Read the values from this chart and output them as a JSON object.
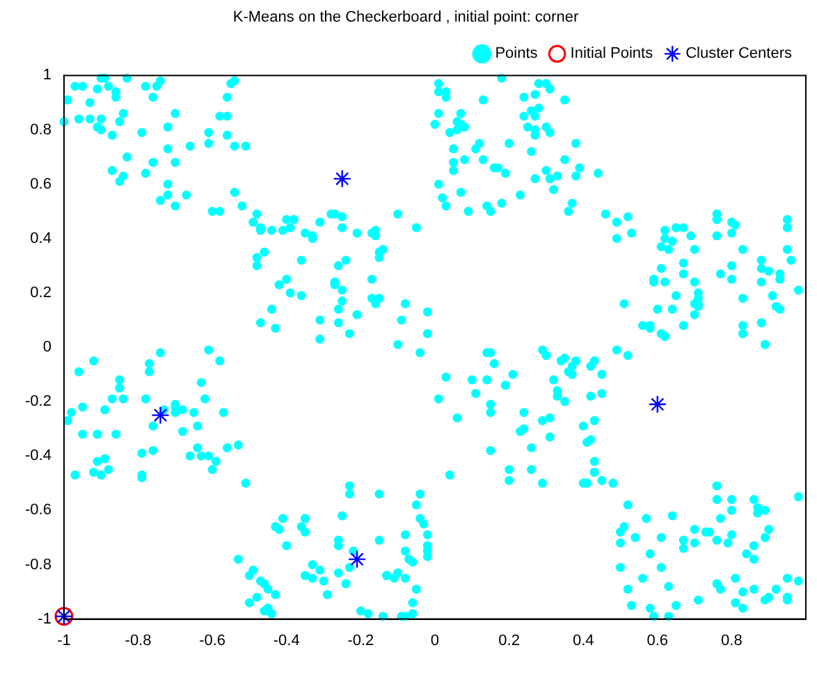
{
  "chart_data": {
    "type": "scatter",
    "title": "K-Means on the Checkerboard , initial point: corner",
    "xlim": [
      -1,
      1
    ],
    "xticks": [
      -1,
      -0.8,
      -0.6,
      -0.4,
      -0.2,
      0,
      0.2,
      0.4,
      0.6,
      0.8
    ],
    "ylim": [
      -1,
      1
    ],
    "yticks": [
      -1,
      -0.8,
      -0.6,
      -0.4,
      -0.2,
      0,
      0.2,
      0.4,
      0.6,
      0.8,
      1
    ],
    "grid": false,
    "legend": "top right",
    "series": [
      {
        "name": "Points",
        "color": "#00ffff",
        "marker": "circle",
        "x": [
          -0.97,
          -0.95,
          -0.99,
          -0.93,
          -0.91,
          -0.9,
          -0.89,
          -0.88,
          -0.86,
          -0.86,
          -0.83,
          -0.78,
          -0.75,
          -0.74,
          -0.76,
          -1.0,
          -0.96,
          -0.93,
          -0.9,
          -0.91,
          -0.9,
          -0.87,
          -0.85,
          -0.84,
          -0.79,
          -0.7,
          -0.72,
          -0.72,
          -0.83,
          -0.87,
          -0.84,
          -0.85,
          -0.78,
          -0.76,
          -0.7,
          -0.72,
          -0.74,
          -0.72,
          -0.7,
          -0.67,
          -0.66,
          -0.61,
          -0.61,
          -0.56,
          -0.58,
          -0.56,
          -0.54,
          -0.51,
          -0.56,
          -0.55,
          -0.54,
          -0.54,
          -0.6,
          -0.58,
          -0.52,
          -0.48,
          -0.49,
          -0.47,
          -0.47,
          -0.44,
          -0.41,
          -0.4,
          -0.38,
          -0.39,
          -0.35,
          -0.33,
          -0.33,
          -0.31,
          -0.28,
          -0.27,
          -0.25,
          -0.25,
          -0.21,
          -0.17,
          -0.16,
          -0.16,
          -0.14,
          -0.15,
          -0.15,
          -0.1,
          -0.05,
          -0.48,
          -0.46,
          -0.48,
          -0.36,
          -0.42,
          -0.4,
          -0.39,
          -0.36,
          -0.27,
          -0.27,
          -0.25,
          -0.26,
          -0.24,
          -0.17,
          -0.17,
          -0.15,
          -0.16,
          -0.26,
          -0.25,
          -0.21,
          -0.31,
          -0.26,
          -0.23,
          -0.31,
          -0.44,
          -0.47,
          -0.43,
          -0.1,
          -0.08,
          -0.09,
          -0.02,
          -0.02,
          0.01,
          0.01,
          0.03,
          0.03,
          0.0,
          0.01,
          0.06,
          0.07,
          0.07,
          0.08,
          0.06,
          0.04,
          0.13,
          0.18,
          0.05,
          0.05,
          0.05,
          0.08,
          0.11,
          0.12,
          0.13,
          0.16,
          0.17,
          0.19,
          0.2,
          0.01,
          0.02,
          0.03,
          0.07,
          0.09,
          0.14,
          0.15,
          0.18,
          0.23,
          0.24,
          0.27,
          0.28,
          0.3,
          0.31,
          0.24,
          0.26,
          0.28,
          0.27,
          0.25,
          0.27,
          0.27,
          0.3,
          0.31,
          0.26,
          0.27,
          0.3,
          0.31,
          0.33,
          0.35,
          0.38,
          0.39,
          0.38,
          0.32,
          0.37,
          0.44,
          0.35,
          0.36,
          0.46,
          0.49,
          0.53,
          0.49,
          0.52,
          0.62,
          0.62,
          0.61,
          0.63,
          0.64,
          0.65,
          0.67,
          0.69,
          0.7,
          0.67,
          0.61,
          0.59,
          0.59,
          0.62,
          0.67,
          0.7,
          0.71,
          0.71,
          0.71,
          0.71,
          0.65,
          0.64,
          0.6,
          0.58,
          0.56,
          0.58,
          0.61,
          0.62,
          0.67,
          0.7,
          0.7,
          0.76,
          0.76,
          0.76,
          0.8,
          0.81,
          0.83,
          0.8,
          0.77,
          0.8,
          0.83,
          0.83,
          0.83,
          0.8,
          0.88,
          0.88,
          0.88,
          0.9,
          0.93,
          0.93,
          0.95,
          0.95,
          0.95,
          0.96,
          0.98,
          0.92,
          0.93,
          0.88,
          0.89,
          0.91,
          0.51,
          0.52,
          -0.96,
          -0.92,
          -0.85,
          -0.85,
          -0.87,
          -0.95,
          -0.98,
          -0.99,
          -0.91,
          -0.95,
          -0.91,
          -0.89,
          -0.86,
          -0.84,
          -0.78,
          -0.74,
          -0.77,
          -0.77,
          -0.7,
          -0.76,
          -0.73,
          -0.7,
          -0.68,
          -0.68,
          -0.7,
          -0.65,
          -0.64,
          -0.63,
          -0.62,
          -0.61,
          -0.58,
          -0.57,
          -0.53,
          -0.79,
          -0.76,
          -0.89,
          -0.91,
          -0.92,
          -0.97,
          -0.9,
          -0.88,
          -0.79,
          -0.79,
          -0.66,
          -0.64,
          -0.63,
          -0.61,
          -0.6,
          -0.59,
          -0.56,
          -0.51,
          -0.53,
          -0.5,
          -0.49,
          -0.47,
          -0.46,
          -0.45,
          -0.43,
          -0.5,
          -0.48,
          -0.45,
          -0.46,
          -0.45,
          -0.44,
          -0.4,
          -0.43,
          -0.42,
          -0.41,
          -0.36,
          -0.35,
          -0.35,
          -0.33,
          -0.33,
          -0.35,
          -0.31,
          -0.3,
          -0.29,
          -0.26,
          -0.26,
          -0.25,
          -0.23,
          -0.23,
          -0.26,
          -0.24,
          -0.23,
          -0.22,
          -0.2,
          -0.18,
          -0.14,
          -0.15,
          -0.15,
          -0.13,
          -0.13,
          -0.11,
          -0.1,
          -0.08,
          -0.08,
          -0.08,
          -0.07,
          -0.06,
          -0.05,
          -0.06,
          -0.09,
          -0.08,
          -0.06,
          -0.04,
          -0.05,
          -0.04,
          -0.03,
          -0.02,
          -0.02,
          -0.02,
          -0.02,
          -0.04,
          0.01,
          0.06,
          0.04,
          0.03,
          0.1,
          0.11,
          0.14,
          0.15,
          0.15,
          0.15,
          0.15,
          0.14,
          0.16,
          0.19,
          0.19,
          0.21,
          0.24,
          0.23,
          0.24,
          0.26,
          0.2,
          0.2,
          0.26,
          0.29,
          0.31,
          0.29,
          0.31,
          0.33,
          0.32,
          0.33,
          0.35,
          0.37,
          0.36,
          0.38,
          0.29,
          0.3,
          0.3,
          0.34,
          0.35,
          0.37,
          0.42,
          0.43,
          0.45,
          0.45,
          0.42,
          0.43,
          0.4,
          0.41,
          0.42,
          0.43,
          0.43,
          0.43,
          0.45,
          0.4,
          0.41,
          0.48,
          0.49,
          0.52,
          0.51,
          0.5,
          0.5,
          0.54,
          0.57,
          0.61,
          0.64,
          0.58,
          0.61,
          0.5,
          0.52,
          0.56,
          0.53,
          0.58,
          0.59,
          0.63,
          0.63,
          0.65,
          0.67,
          0.67,
          0.7,
          0.7,
          0.73,
          0.74,
          0.71,
          0.76,
          0.77,
          0.76,
          0.76,
          0.8,
          0.8,
          0.77,
          0.76,
          0.79,
          0.8,
          0.81,
          0.83,
          0.81,
          0.83,
          0.86,
          0.87,
          0.87,
          0.89,
          0.9,
          0.89,
          0.86,
          0.84,
          0.86,
          0.86,
          0.89,
          0.9,
          0.92,
          0.95,
          0.95,
          0.95,
          0.98,
          0.98
        ],
        "values": [
          0.96,
          0.96,
          0.91,
          0.9,
          0.95,
          0.99,
          0.99,
          0.96,
          0.94,
          0.92,
          0.99,
          0.96,
          0.96,
          0.98,
          0.92,
          0.83,
          0.84,
          0.84,
          0.84,
          0.81,
          0.8,
          0.78,
          0.83,
          0.86,
          0.79,
          0.86,
          0.81,
          0.73,
          0.7,
          0.65,
          0.63,
          0.61,
          0.64,
          0.68,
          0.68,
          0.6,
          0.54,
          0.56,
          0.52,
          0.56,
          0.74,
          0.79,
          0.75,
          0.78,
          0.85,
          0.85,
          0.74,
          0.74,
          0.92,
          0.97,
          0.98,
          0.57,
          0.5,
          0.5,
          0.52,
          0.49,
          0.46,
          0.44,
          0.43,
          0.43,
          0.43,
          0.47,
          0.47,
          0.44,
          0.42,
          0.41,
          0.4,
          0.46,
          0.49,
          0.49,
          0.48,
          0.44,
          0.42,
          0.42,
          0.43,
          0.41,
          0.36,
          0.35,
          0.33,
          0.49,
          0.44,
          0.33,
          0.35,
          0.3,
          0.32,
          0.23,
          0.25,
          0.2,
          0.19,
          0.24,
          0.23,
          0.21,
          0.3,
          0.32,
          0.25,
          0.18,
          0.18,
          0.16,
          0.14,
          0.17,
          0.12,
          0.1,
          0.09,
          0.05,
          0.03,
          0.14,
          0.09,
          0.07,
          0.01,
          0.16,
          0.1,
          0.13,
          0.05,
          0.97,
          0.94,
          0.94,
          0.92,
          0.82,
          0.86,
          0.83,
          0.86,
          0.82,
          0.81,
          0.8,
          0.79,
          0.91,
          0.99,
          0.73,
          0.68,
          0.65,
          0.69,
          0.73,
          0.75,
          0.69,
          0.66,
          0.66,
          0.64,
          0.75,
          0.6,
          0.55,
          0.52,
          0.57,
          0.5,
          0.52,
          0.5,
          0.53,
          0.56,
          0.92,
          0.93,
          0.97,
          0.97,
          0.95,
          0.85,
          0.87,
          0.88,
          0.85,
          0.81,
          0.8,
          0.78,
          0.81,
          0.79,
          0.72,
          0.62,
          0.65,
          0.62,
          0.63,
          0.69,
          0.63,
          0.66,
          0.75,
          0.58,
          0.53,
          0.64,
          0.91,
          0.5,
          0.49,
          0.46,
          0.42,
          0.4,
          0.48,
          0.43,
          0.4,
          0.37,
          0.36,
          0.39,
          0.44,
          0.44,
          0.41,
          0.36,
          0.31,
          0.29,
          0.24,
          0.25,
          0.24,
          0.27,
          0.24,
          0.2,
          0.18,
          0.16,
          0.15,
          0.19,
          0.14,
          0.14,
          0.08,
          0.08,
          0.07,
          0.05,
          0.04,
          0.08,
          0.12,
          0.16,
          0.49,
          0.47,
          0.41,
          0.42,
          0.45,
          0.36,
          0.3,
          0.27,
          0.25,
          0.18,
          0.08,
          0.05,
          0.46,
          0.29,
          0.24,
          0.32,
          0.28,
          0.27,
          0.25,
          0.36,
          0.44,
          0.47,
          0.32,
          0.21,
          0.15,
          0.14,
          0.09,
          0.01,
          0.19,
          0.16,
          -0.03,
          -0.09,
          -0.05,
          -0.12,
          -0.15,
          -0.19,
          -0.22,
          -0.24,
          -0.27,
          -0.32,
          -0.32,
          -0.32,
          -0.23,
          -0.32,
          -0.19,
          -0.19,
          -0.02,
          -0.06,
          -0.09,
          -0.24,
          -0.29,
          -0.23,
          -0.21,
          -0.23,
          -0.31,
          -0.22,
          -0.24,
          -0.29,
          -0.13,
          -0.19,
          -0.01,
          -0.05,
          -0.24,
          -0.36,
          -0.39,
          -0.38,
          -0.41,
          -0.42,
          -0.46,
          -0.47,
          -0.47,
          -0.45,
          -0.47,
          -0.48,
          -0.4,
          -0.37,
          -0.4,
          -0.4,
          -0.45,
          -0.42,
          -0.37,
          -0.5,
          -0.78,
          -0.84,
          -0.82,
          -0.86,
          -0.87,
          -0.89,
          -0.91,
          -0.94,
          -0.92,
          -0.97,
          -0.97,
          -0.96,
          -0.98,
          -0.73,
          -0.66,
          -0.67,
          -0.63,
          -0.66,
          -0.68,
          -0.63,
          -0.8,
          -0.85,
          -0.84,
          -0.82,
          -0.86,
          -0.91,
          -0.73,
          -0.71,
          -0.62,
          -0.54,
          -0.51,
          -0.83,
          -0.87,
          -0.81,
          -0.75,
          -0.97,
          -0.98,
          -0.99,
          -0.54,
          -0.71,
          -0.84,
          -0.84,
          -0.85,
          -0.83,
          -0.85,
          -0.69,
          -0.75,
          -0.78,
          -0.79,
          -0.89,
          -0.98,
          -0.99,
          -0.99,
          -0.94,
          -0.63,
          -0.58,
          -0.54,
          -0.65,
          -0.73,
          -0.75,
          -0.77,
          -0.69,
          -0.02,
          -0.19,
          -0.26,
          -0.47,
          -0.11,
          -0.12,
          -0.17,
          -0.12,
          -0.21,
          -0.24,
          -0.38,
          -0.02,
          -0.02,
          -0.06,
          -0.14,
          -0.14,
          -0.1,
          -0.24,
          -0.31,
          -0.3,
          -0.37,
          -0.45,
          -0.49,
          -0.45,
          -0.5,
          -0.26,
          -0.27,
          -0.33,
          -0.16,
          -0.12,
          -0.18,
          -0.2,
          -0.1,
          -0.09,
          -0.05,
          -0.01,
          -0.03,
          -0.03,
          -0.05,
          -0.04,
          -0.07,
          -0.07,
          -0.05,
          -0.1,
          -0.17,
          -0.18,
          -0.27,
          -0.29,
          -0.35,
          -0.34,
          -0.42,
          -0.46,
          -0.46,
          -0.49,
          -0.5,
          -0.5,
          -0.5,
          -0.01,
          -0.58,
          -0.66,
          -0.68,
          -0.72,
          -0.7,
          -0.63,
          -0.7,
          -0.62,
          -0.76,
          -0.81,
          -0.81,
          -0.89,
          -0.85,
          -0.95,
          -0.96,
          -0.99,
          -0.99,
          -0.88,
          -0.95,
          -0.71,
          -0.74,
          -0.72,
          -0.67,
          -0.68,
          -0.68,
          -0.93,
          -0.87,
          -0.89,
          -0.51,
          -0.56,
          -0.56,
          -0.6,
          -0.63,
          -0.71,
          -0.72,
          -0.69,
          -0.85,
          -0.9,
          -0.94,
          -0.96,
          -0.56,
          -0.59,
          -0.61,
          -0.6,
          -0.67,
          -0.7,
          -0.73,
          -0.76,
          -0.78,
          -0.89,
          -0.93,
          -0.92,
          -0.89,
          -0.85,
          -0.92,
          -0.93,
          -0.55,
          -0.86
        ]
      },
      {
        "name": "Initial Points",
        "color": "#ff0000",
        "marker": "circle",
        "x": [
          -1
        ],
        "values": [
          -0.99
        ]
      },
      {
        "name": "Cluster Centers",
        "color": "#0000ff",
        "marker": "cross",
        "x": [
          -0.25,
          0.6,
          -0.74,
          -0.21,
          -1
        ],
        "values": [
          0.62,
          -0.21,
          -0.25,
          -0.78,
          -0.99
        ]
      }
    ]
  }
}
